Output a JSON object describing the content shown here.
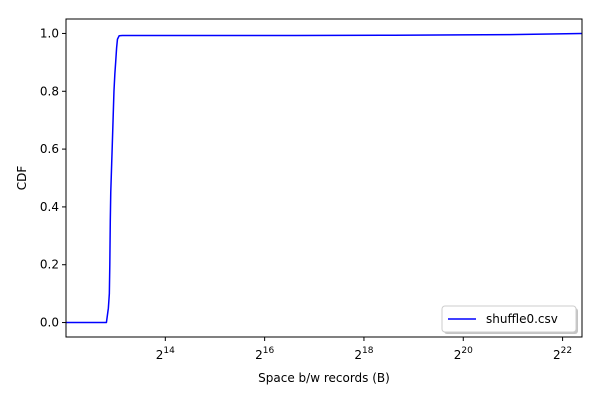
{
  "chart_data": {
    "type": "line",
    "title": "",
    "xlabel": "Space b/w records (B)",
    "ylabel": "CDF",
    "x_scale": "log2",
    "xlim": [
      4096,
      5500000
    ],
    "ylim": [
      -0.05,
      1.05
    ],
    "x_ticks": [
      {
        "value": 16384,
        "base": "2",
        "exp": "14"
      },
      {
        "value": 65536,
        "base": "2",
        "exp": "16"
      },
      {
        "value": 262144,
        "base": "2",
        "exp": "18"
      },
      {
        "value": 1048576,
        "base": "2",
        "exp": "20"
      },
      {
        "value": 4194304,
        "base": "2",
        "exp": "22"
      }
    ],
    "y_ticks": [
      "0.0",
      "0.2",
      "0.4",
      "0.6",
      "0.8",
      "1.0"
    ],
    "y_tick_values": [
      0.0,
      0.2,
      0.4,
      0.6,
      0.8,
      1.0
    ],
    "grid": false,
    "legend_position": "lower-right",
    "series": [
      {
        "name": "shuffle0.csv",
        "color": "#0000ff",
        "x": [
          4096,
          7200,
          7400,
          7500,
          7550,
          7600,
          7650,
          7700,
          7750,
          7800,
          7900,
          8000,
          8100,
          8192,
          8300,
          8400,
          8600,
          9000,
          20000,
          100000,
          400000,
          1000000,
          2000000,
          5500000
        ],
        "y": [
          0.0,
          0.0,
          0.05,
          0.1,
          0.2,
          0.35,
          0.45,
          0.5,
          0.55,
          0.6,
          0.7,
          0.8,
          0.86,
          0.9,
          0.95,
          0.98,
          0.992,
          0.993,
          0.993,
          0.993,
          0.994,
          0.995,
          0.996,
          1.0
        ]
      }
    ]
  }
}
